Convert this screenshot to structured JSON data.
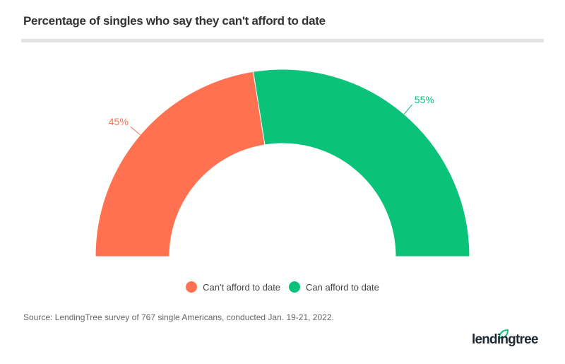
{
  "title": "Percentage of singles who say they can't afford to date",
  "chart_data": {
    "type": "pie",
    "variant": "semi-donut",
    "categories": [
      "Can't afford to date",
      "Can afford to date"
    ],
    "values": [
      45,
      55
    ],
    "data_labels": [
      "45%",
      "55%"
    ],
    "colors": [
      "#ff7150",
      "#0bc279"
    ],
    "legend": "bottom"
  },
  "source": "Source: LendingTree survey of 767 single Americans, conducted Jan. 19-21, 2022.",
  "logo": {
    "text": "lendingtree",
    "icon": "leaf-icon",
    "color": "#0bc279"
  }
}
